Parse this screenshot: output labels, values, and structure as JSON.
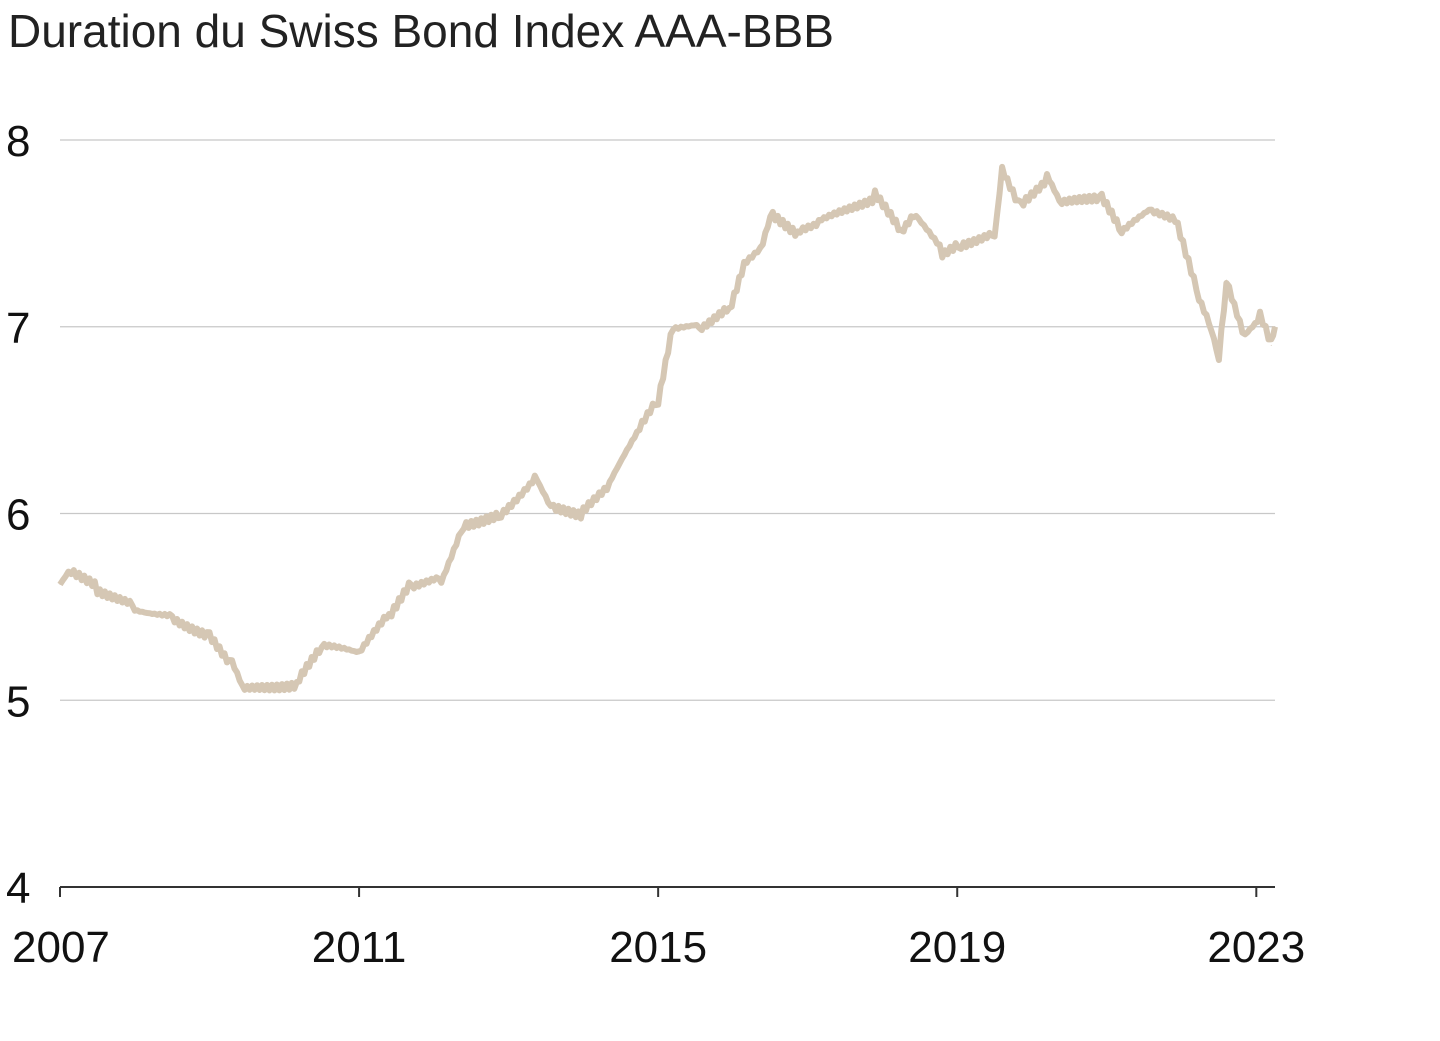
{
  "chart_data": {
    "type": "line",
    "title": "Duration du Swiss Bond Index AAA-BBB",
    "xlabel": "",
    "ylabel": "",
    "xlim": [
      2007,
      2023.25
    ],
    "ylim": [
      4,
      8
    ],
    "x_ticks": [
      "2007",
      "2011",
      "2015",
      "2019",
      "2023"
    ],
    "x_tick_values": [
      2007,
      2011,
      2015,
      2019,
      2023
    ],
    "y_ticks": [
      "4",
      "5",
      "6",
      "7",
      "8"
    ],
    "y_tick_values": [
      4,
      5,
      6,
      7,
      8
    ],
    "grid": true,
    "line_color": "#d5c7b4",
    "series": [
      {
        "name": "Duration",
        "x": [
          2007.0,
          2007.15,
          2007.5,
          2008.0,
          2008.5,
          2009.0,
          2009.3,
          2009.47,
          2010.2,
          2010.5,
          2011.0,
          2011.4,
          2011.7,
          2012.1,
          2012.4,
          2012.9,
          2013.35,
          2013.6,
          2014.0,
          2014.35,
          2014.75,
          2015.0,
          2015.2,
          2015.55,
          2015.95,
          2016.15,
          2016.4,
          2016.5,
          2016.9,
          2017.15,
          2017.9,
          2018.25,
          2018.45,
          2018.8,
          2019.05,
          2019.5,
          2019.6,
          2019.85,
          2020.2,
          2020.4,
          2020.9,
          2021.2,
          2021.6,
          2021.95,
          2022.2,
          2022.4,
          2022.5,
          2022.6,
          2022.85,
          2023.05,
          2023.2,
          2023.25
        ],
        "y": [
          5.62,
          5.7,
          5.6,
          5.5,
          5.45,
          5.35,
          5.2,
          5.05,
          5.1,
          5.28,
          5.25,
          5.45,
          5.62,
          5.65,
          5.95,
          6.0,
          6.2,
          6.02,
          6.0,
          6.15,
          6.45,
          6.6,
          7.0,
          7.0,
          7.1,
          7.35,
          7.45,
          7.6,
          7.5,
          7.55,
          7.7,
          7.5,
          7.6,
          7.4,
          7.45,
          7.5,
          7.85,
          7.65,
          7.8,
          7.65,
          7.7,
          7.5,
          7.62,
          7.55,
          7.2,
          7.0,
          6.85,
          7.25,
          6.95,
          7.05,
          6.9,
          7.0
        ]
      }
    ]
  }
}
